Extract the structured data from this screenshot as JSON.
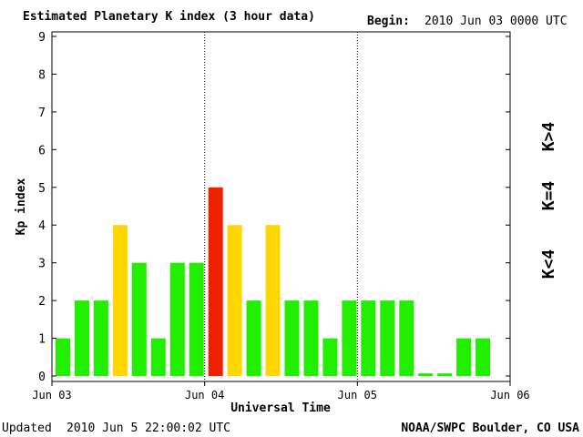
{
  "header": {
    "title": "Estimated Planetary K index (3 hour data)",
    "begin_label": "Begin:",
    "begin_value": "2010 Jun 03 0000 UTC"
  },
  "footer": {
    "updated_label": "Updated",
    "updated_value": "2010 Jun  5 22:00:02 UTC",
    "source": "NOAA/SWPC Boulder, CO USA"
  },
  "legend": {
    "high_label": "K>4",
    "equal_label": "K=4",
    "low_label": "K<4"
  },
  "colors": {
    "low": "#22ee00",
    "equal": "#ffd700",
    "high": "#ee2200",
    "axis": "#000000",
    "day_divider": "#000000"
  },
  "chart_data": {
    "type": "bar",
    "title": "Estimated Planetary K index (3 hour data)",
    "xlabel": "Universal Time",
    "ylabel": "Kp index",
    "ylim": [
      0,
      9
    ],
    "y_ticks": [
      "0",
      "1",
      "2",
      "3",
      "4",
      "5",
      "6",
      "7",
      "8",
      "9"
    ],
    "x_ticks": [
      "Jun 03",
      "Jun 04",
      "Jun 05",
      "Jun 06"
    ],
    "interval_hours": 3,
    "grid": false,
    "day_dividers": "dotted",
    "values": [
      1,
      2,
      2,
      4,
      3,
      1,
      3,
      3,
      5,
      4,
      2,
      4,
      2,
      2,
      1,
      2,
      2,
      2,
      2,
      0.07,
      0.07,
      1,
      1
    ]
  }
}
